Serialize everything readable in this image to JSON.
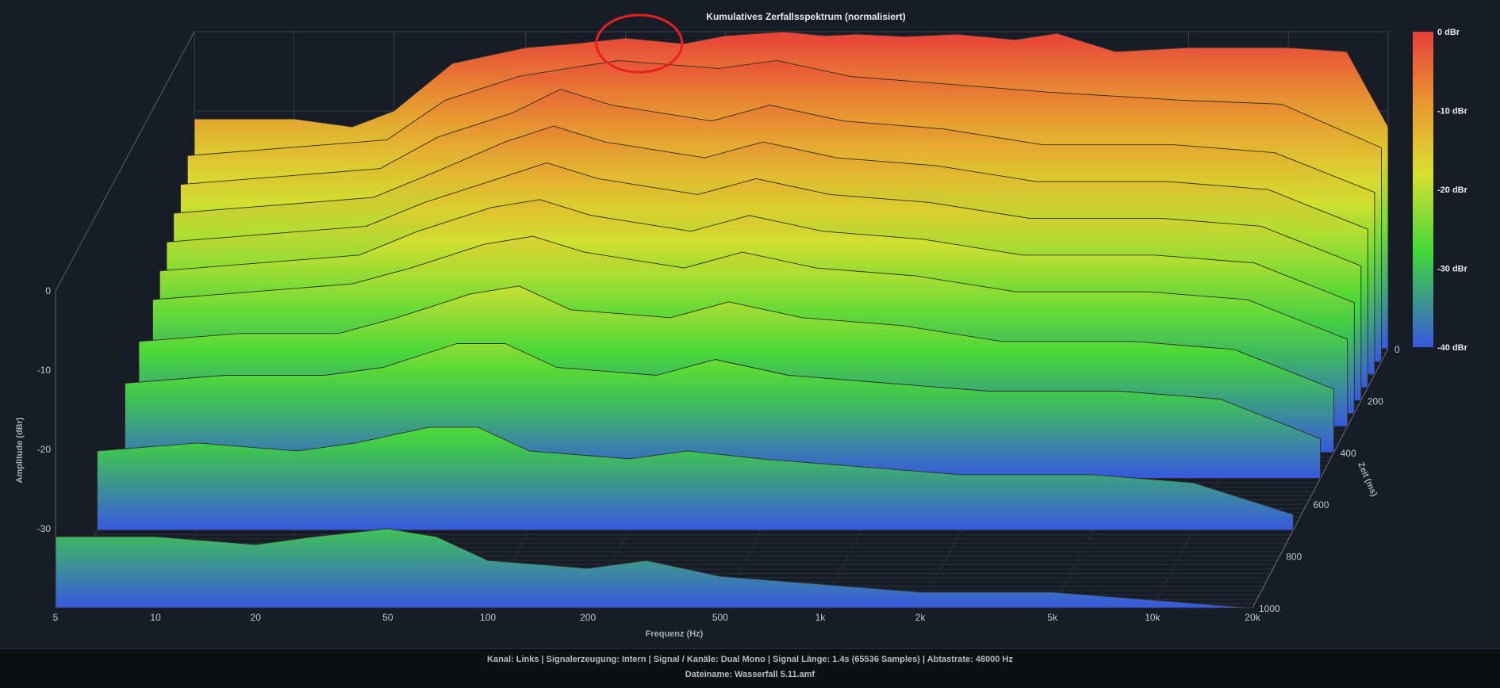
{
  "chart_data": {
    "type": "area",
    "subtype": "waterfall-3d",
    "title": "Kumulatives Zerfallsspektrum (normalisiert)",
    "xlabel": "Frequenz (Hz)",
    "ylabel": "Amplitude (dBr)",
    "zlabel": "Zeit (ms)",
    "x_ticks": [
      "5",
      "10",
      "20",
      "50",
      "100",
      "200",
      "500",
      "1k",
      "2k",
      "5k",
      "10k",
      "20k"
    ],
    "x_tick_values": [
      5,
      10,
      20,
      50,
      100,
      200,
      500,
      1000,
      2000,
      5000,
      10000,
      20000
    ],
    "xlim": [
      5,
      20000
    ],
    "x_scale": "log",
    "y_ticks": [
      "0",
      "-10",
      "-20",
      "-30"
    ],
    "y_tick_values": [
      0,
      -10,
      -20,
      -30
    ],
    "ylim": [
      -40,
      0
    ],
    "z_ticks": [
      "0",
      "200",
      "400",
      "600",
      "800",
      "1000"
    ],
    "z_tick_values": [
      0,
      200,
      400,
      600,
      800,
      1000
    ],
    "zlim": [
      0,
      1000
    ],
    "colorbar": {
      "labels": [
        "0 dBr",
        "-10 dBr",
        "-20 dBr",
        "-30 dBr",
        "-40 dBr"
      ],
      "values": [
        0,
        -10,
        -20,
        -30,
        -40
      ],
      "colors": [
        "#e8403a",
        "#e8a030",
        "#d8e030",
        "#40d838",
        "#3858e0"
      ]
    },
    "series": [
      {
        "values": [
          [
            5,
            -11
          ],
          [
            10,
            -11
          ],
          [
            15,
            -12
          ],
          [
            20,
            -10
          ],
          [
            30,
            -4
          ],
          [
            50,
            -2
          ],
          [
            70,
            -1.5
          ],
          [
            100,
            -0.8
          ],
          [
            150,
            -1.5
          ],
          [
            200,
            -0.5
          ],
          [
            300,
            0
          ],
          [
            400,
            -0.5
          ],
          [
            500,
            -0.3
          ],
          [
            700,
            -0.6
          ],
          [
            1000,
            -0.3
          ],
          [
            1500,
            -1
          ],
          [
            2000,
            -0.2
          ],
          [
            3000,
            -2.5
          ],
          [
            5000,
            -2
          ],
          [
            10000,
            -2
          ],
          [
            15000,
            -2.5
          ],
          [
            20000,
            -12
          ]
        ]
      },
      {
        "values": [
          [
            5,
            -14
          ],
          [
            10,
            -13
          ],
          [
            20,
            -12
          ],
          [
            30,
            -7
          ],
          [
            50,
            -4
          ],
          [
            70,
            -3
          ],
          [
            100,
            -2
          ],
          [
            200,
            -3
          ],
          [
            300,
            -2
          ],
          [
            500,
            -4
          ],
          [
            1000,
            -5
          ],
          [
            2000,
            -6
          ],
          [
            5000,
            -7
          ],
          [
            10000,
            -7.5
          ],
          [
            20000,
            -13
          ]
        ]
      },
      {
        "values": [
          [
            5,
            -16
          ],
          [
            10,
            -15
          ],
          [
            20,
            -14
          ],
          [
            30,
            -10
          ],
          [
            50,
            -7
          ],
          [
            70,
            -4
          ],
          [
            100,
            -6
          ],
          [
            200,
            -8
          ],
          [
            300,
            -6
          ],
          [
            500,
            -8
          ],
          [
            1000,
            -9
          ],
          [
            2000,
            -11
          ],
          [
            5000,
            -11
          ],
          [
            10000,
            -12
          ],
          [
            20000,
            -17
          ]
        ]
      },
      {
        "values": [
          [
            5,
            -18
          ],
          [
            10,
            -17
          ],
          [
            20,
            -16
          ],
          [
            30,
            -13
          ],
          [
            50,
            -9
          ],
          [
            70,
            -7
          ],
          [
            100,
            -9
          ],
          [
            200,
            -11
          ],
          [
            300,
            -9
          ],
          [
            500,
            -11
          ],
          [
            1000,
            -12
          ],
          [
            2000,
            -14
          ],
          [
            5000,
            -14
          ],
          [
            10000,
            -15
          ],
          [
            20000,
            -20
          ]
        ]
      },
      {
        "values": [
          [
            5,
            -20
          ],
          [
            10,
            -19
          ],
          [
            20,
            -18
          ],
          [
            30,
            -15
          ],
          [
            50,
            -12
          ],
          [
            70,
            -10
          ],
          [
            100,
            -12
          ],
          [
            200,
            -14
          ],
          [
            300,
            -12
          ],
          [
            500,
            -14
          ],
          [
            1000,
            -15
          ],
          [
            2000,
            -17
          ],
          [
            5000,
            -17
          ],
          [
            10000,
            -18
          ],
          [
            20000,
            -23
          ]
        ]
      },
      {
        "values": [
          [
            5,
            -22
          ],
          [
            10,
            -21
          ],
          [
            20,
            -20
          ],
          [
            30,
            -17
          ],
          [
            50,
            -14
          ],
          [
            70,
            -13
          ],
          [
            100,
            -15
          ],
          [
            200,
            -17
          ],
          [
            300,
            -15
          ],
          [
            500,
            -17
          ],
          [
            1000,
            -18
          ],
          [
            2000,
            -20
          ],
          [
            5000,
            -20
          ],
          [
            10000,
            -21
          ],
          [
            20000,
            -26
          ]
        ]
      },
      {
        "values": [
          [
            5,
            -24
          ],
          [
            10,
            -23
          ],
          [
            20,
            -22
          ],
          [
            30,
            -20
          ],
          [
            50,
            -17
          ],
          [
            70,
            -16
          ],
          [
            100,
            -18
          ],
          [
            200,
            -20
          ],
          [
            300,
            -18
          ],
          [
            500,
            -20
          ],
          [
            1000,
            -21
          ],
          [
            2000,
            -23
          ],
          [
            5000,
            -23
          ],
          [
            10000,
            -24
          ],
          [
            20000,
            -29
          ]
        ]
      },
      {
        "values": [
          [
            5,
            -26
          ],
          [
            10,
            -25
          ],
          [
            20,
            -25
          ],
          [
            30,
            -23
          ],
          [
            50,
            -20
          ],
          [
            70,
            -19
          ],
          [
            100,
            -22
          ],
          [
            200,
            -23
          ],
          [
            300,
            -21
          ],
          [
            500,
            -23
          ],
          [
            1000,
            -24
          ],
          [
            2000,
            -26
          ],
          [
            5000,
            -26
          ],
          [
            10000,
            -27
          ],
          [
            20000,
            -32
          ]
        ]
      },
      {
        "values": [
          [
            5,
            -28
          ],
          [
            10,
            -27
          ],
          [
            20,
            -27
          ],
          [
            30,
            -26
          ],
          [
            50,
            -23
          ],
          [
            70,
            -23
          ],
          [
            100,
            -26
          ],
          [
            200,
            -27
          ],
          [
            300,
            -25
          ],
          [
            500,
            -27
          ],
          [
            1000,
            -28
          ],
          [
            2000,
            -29
          ],
          [
            5000,
            -29
          ],
          [
            10000,
            -30
          ],
          [
            20000,
            -35
          ]
        ]
      },
      {
        "values": [
          [
            5,
            -30
          ],
          [
            10,
            -29
          ],
          [
            20,
            -30
          ],
          [
            30,
            -29
          ],
          [
            50,
            -27
          ],
          [
            70,
            -27
          ],
          [
            100,
            -30
          ],
          [
            200,
            -31
          ],
          [
            300,
            -30
          ],
          [
            500,
            -31
          ],
          [
            1000,
            -32
          ],
          [
            2000,
            -33
          ],
          [
            5000,
            -33
          ],
          [
            10000,
            -34
          ],
          [
            20000,
            -38
          ]
        ]
      },
      {
        "values": [
          [
            5,
            -31
          ],
          [
            10,
            -31
          ],
          [
            20,
            -32
          ],
          [
            30,
            -31
          ],
          [
            50,
            -30
          ],
          [
            70,
            -31
          ],
          [
            100,
            -34
          ],
          [
            200,
            -35
          ],
          [
            300,
            -34
          ],
          [
            500,
            -36
          ],
          [
            1000,
            -37
          ],
          [
            2000,
            -38
          ],
          [
            5000,
            -38
          ],
          [
            10000,
            -39
          ],
          [
            20000,
            -40
          ]
        ]
      }
    ],
    "series_times_ms": [
      0,
      50,
      100,
      150,
      200,
      250,
      300,
      400,
      500,
      700,
      1000
    ],
    "annotations": [
      {
        "type": "ellipse",
        "color": "#e82020",
        "x": 110,
        "y": -1.5
      }
    ]
  },
  "footer": {
    "info": "Kanal: Links  |  Signalerzeugung: Intern  |  Signal / Kanäle: Dual Mono  |  Signal Länge: 1.4s (65536 Samples)  |  Abtastrate: 48000 Hz",
    "filename": "Dateiname: Wasserfall 5.11.amf"
  }
}
